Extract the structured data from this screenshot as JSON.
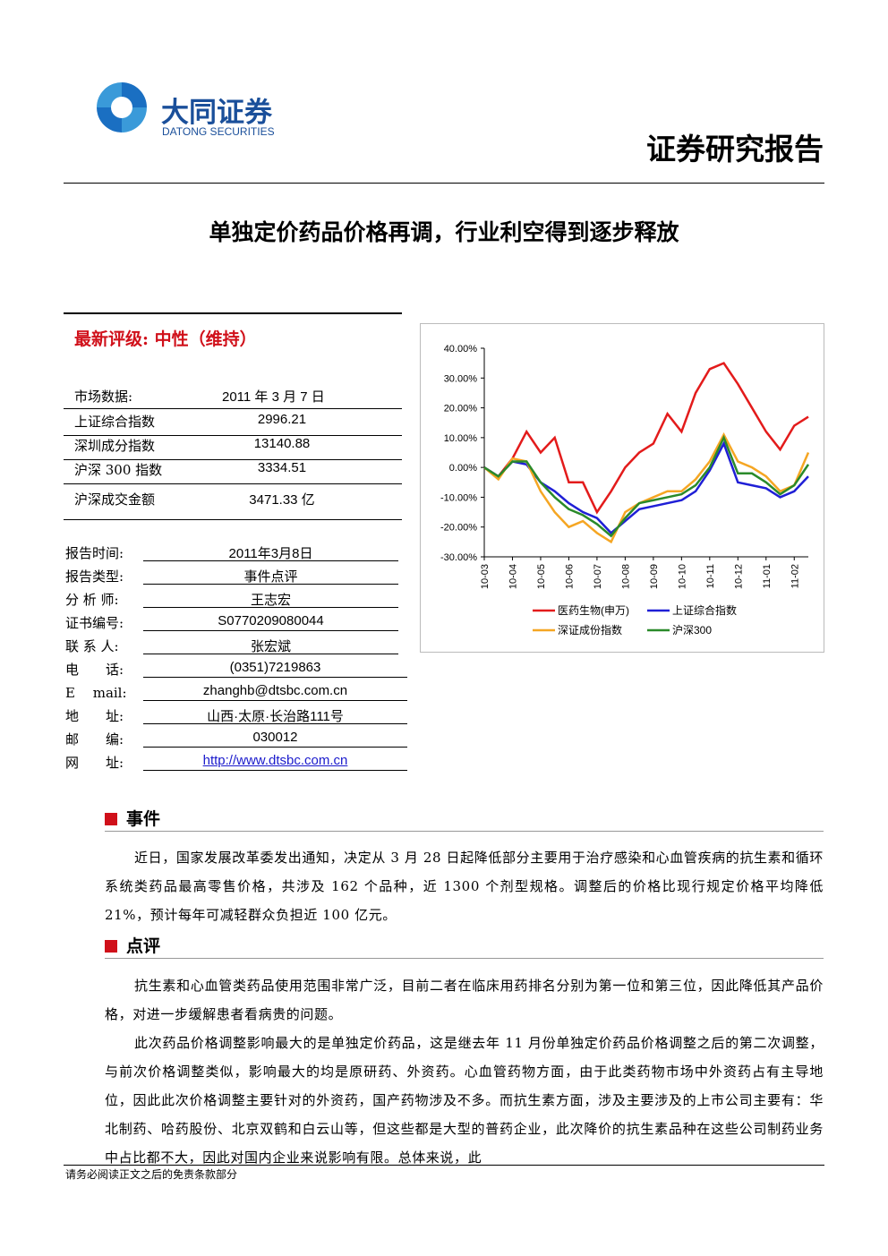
{
  "header": {
    "company": "大同证券",
    "company_en": "DATONG SECURITIES",
    "report_type": "证券研究报告"
  },
  "title": "单独定价药品价格再调，行业利空得到逐步释放",
  "rating": {
    "label": "最新评级:",
    "value": "中性（维持）"
  },
  "market": {
    "heading": "市场数据:",
    "date": "2011 年 3 月 7 日",
    "rows": [
      [
        "上证综合指数",
        "2996.21"
      ],
      [
        "深圳成分指数",
        "13140.88"
      ],
      [
        "沪深 300 指数",
        "3334.51"
      ],
      [
        "沪深成交金额",
        "3471.33 亿"
      ]
    ]
  },
  "info": [
    [
      "报告时间:",
      "2011年3月8日"
    ],
    [
      "报告类型:",
      "事件点评"
    ],
    [
      "分 析 师:",
      "王志宏"
    ],
    [
      "证书编号:",
      "S0770209080044"
    ],
    [
      "联 系 人:",
      "张宏斌"
    ],
    [
      "电　　话:",
      "(0351)7219863"
    ],
    [
      "E　 mail:",
      "zhanghb@dtsbc.com.cn"
    ],
    [
      "地　　址:",
      "山西·太原·长治路111号"
    ],
    [
      "邮　　编:",
      "030012"
    ],
    [
      "网　　址:",
      "http://www.dtsbc.com.cn"
    ]
  ],
  "sections": [
    {
      "heading": "事件",
      "paragraphs": [
        "近日，国家发展改革委发出通知，决定从 3 月 28 日起降低部分主要用于治疗感染和心血管疾病的抗生素和循环系统类药品最高零售价格，共涉及 162 个品种，近 1300 个剂型规格。调整后的价格比现行规定价格平均降低 21%，预计每年可减轻群众负担近 100 亿元。"
      ]
    },
    {
      "heading": "点评",
      "paragraphs": [
        "抗生素和心血管类药品使用范围非常广泛，目前二者在临床用药排名分别为第一位和第三位，因此降低其产品价格，对进一步缓解患者看病贵的问题。",
        "此次药品价格调整影响最大的是单独定价药品，这是继去年 11 月份单独定价药品价格调整之后的第二次调整，与前次价格调整类似，影响最大的均是原研药、外资药。心血管药物方面，由于此类药物市场中外资药占有主导地位，因此此次价格调整主要针对的外资药，国产药物涉及不多。而抗生素方面，涉及主要涉及的上市公司主要有：华北制药、哈药股份、北京双鹤和白云山等，但这些都是大型的普药企业，此次降价的抗生素品种在这些公司制药业务中占比都不大，因此对国内企业来说影响有限。总体来说，此"
      ]
    }
  ],
  "footer": "请务必阅读正文之后的免责条款部分",
  "chart_data": {
    "type": "line",
    "categories": [
      "10-03",
      null,
      "10-04",
      null,
      "10-05",
      null,
      "10-06",
      null,
      "10-07",
      null,
      "10-08",
      null,
      "10-09",
      null,
      "10-10",
      null,
      "10-11",
      null,
      "10-12",
      null,
      "11-01",
      null,
      "11-02",
      null
    ],
    "series": [
      {
        "name": "医药生物(申万)",
        "color": "#e31b1b",
        "values": [
          0,
          -3,
          3,
          12,
          5,
          10,
          -5,
          -5,
          -15,
          -8,
          0,
          5,
          8,
          18,
          12,
          25,
          33,
          35,
          28,
          20,
          12,
          6,
          14,
          17
        ]
      },
      {
        "name": "上证综合指数",
        "color": "#1f1fd6",
        "values": [
          0,
          -3,
          2,
          1,
          -5,
          -8,
          -12,
          -15,
          -17,
          -22,
          -18,
          -14,
          -13,
          -12,
          -11,
          -8,
          -1,
          8,
          -5,
          -6,
          -7,
          -10,
          -8,
          -3
        ]
      },
      {
        "name": "深证成份指数",
        "color": "#f5a623",
        "values": [
          0,
          -4,
          3,
          2,
          -8,
          -15,
          -20,
          -18,
          -22,
          -25,
          -15,
          -12,
          -10,
          -8,
          -8,
          -4,
          2,
          11,
          2,
          0,
          -3,
          -8,
          -6,
          5
        ]
      },
      {
        "name": "沪深300",
        "color": "#2a8a2a",
        "values": [
          0,
          -3,
          2,
          2,
          -5,
          -10,
          -14,
          -16,
          -19,
          -23,
          -17,
          -12,
          -11,
          -10,
          -9,
          -6,
          0,
          10,
          -2,
          -2,
          -5,
          -9,
          -6,
          1
        ]
      }
    ],
    "ylim": [
      -30,
      40
    ],
    "yticks": [
      {
        "value": -30,
        "label": "-30.00%"
      },
      {
        "value": -20,
        "label": "-20.00%"
      },
      {
        "value": -10,
        "label": "-10.00%"
      },
      {
        "value": 0,
        "label": "0.00%"
      },
      {
        "value": 10,
        "label": "10.00%"
      },
      {
        "value": 20,
        "label": "20.00%"
      },
      {
        "value": 30,
        "label": "30.00%"
      },
      {
        "value": 40,
        "label": "40.00%"
      }
    ]
  }
}
